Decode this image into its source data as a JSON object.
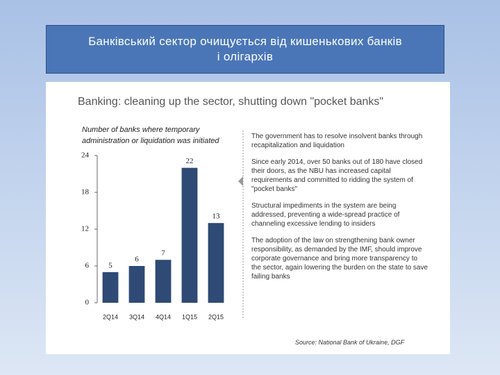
{
  "slide_title": "Банківський сектор очищується від кишенькових банків і олігархів",
  "chart_data": {
    "type": "bar",
    "heading": "Banking: cleaning up the sector, shutting down \"pocket banks\"",
    "title": "Number of banks where temporary administration or liquidation was initiated",
    "categories": [
      "2Q14",
      "3Q14",
      "4Q14",
      "1Q15",
      "2Q15"
    ],
    "values": [
      5,
      6,
      7,
      22,
      13
    ],
    "color": "#2e4a75",
    "ylim": [
      0,
      24
    ],
    "yticks": [
      0,
      6,
      12,
      18,
      24
    ]
  },
  "bullets": [
    "The government has to resolve insolvent banks through recapitalization and liquidation",
    "Since early 2014, over 50 banks out of 180 have closed their doors, as the NBU has increased capital requirements and committed to ridding the system of \"pocket banks\"",
    "Structural impediments in the system are being addressed, preventing a wide-spread practice of channeling excessive lending to insiders",
    "The adoption of the law on strengthening bank owner responsibility, as demanded by the IMF, should improve corporate governance and bring more transparency to the sector, again lowering the burden on the state to save failing banks"
  ],
  "source": "Source: National Bank of Ukraine, DGF"
}
